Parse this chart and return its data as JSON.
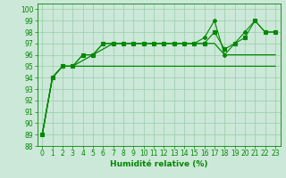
{
  "title": "",
  "xlabel": "Humidité relative (%)",
  "ylabel": "",
  "bg_color": "#cce8d8",
  "grid_color": "#99ccaa",
  "line_color": "#008800",
  "xlim": [
    -0.5,
    23.5
  ],
  "ylim": [
    88,
    100.5
  ],
  "yticks": [
    88,
    89,
    90,
    91,
    92,
    93,
    94,
    95,
    96,
    97,
    98,
    99,
    100
  ],
  "xticks": [
    0,
    1,
    2,
    3,
    4,
    5,
    6,
    7,
    8,
    9,
    10,
    11,
    12,
    13,
    14,
    15,
    16,
    17,
    18,
    19,
    20,
    21,
    22,
    23
  ],
  "series": [
    {
      "x": [
        0,
        1,
        2,
        3,
        4,
        5,
        6,
        7,
        8,
        9,
        10,
        11,
        12,
        13,
        14,
        15,
        16,
        17,
        18,
        19,
        20,
        21,
        22,
        23
      ],
      "y": [
        89,
        94,
        95,
        95,
        95,
        95,
        95,
        95,
        95,
        95,
        95,
        95,
        95,
        95,
        95,
        95,
        95,
        95,
        95,
        95,
        95,
        95,
        95,
        95
      ],
      "linestyle": "-",
      "marker": null,
      "lw": 0.9
    },
    {
      "x": [
        0,
        1,
        2,
        3,
        4,
        5,
        6,
        7,
        8,
        9,
        10,
        11,
        12,
        13,
        14,
        15,
        16,
        17,
        18,
        19,
        20,
        21,
        22,
        23
      ],
      "y": [
        89,
        94,
        95,
        95,
        95.5,
        96,
        96.5,
        97,
        97,
        97,
        97,
        97,
        97,
        97,
        97,
        97,
        97,
        97,
        96,
        96,
        96,
        96,
        96,
        96
      ],
      "linestyle": "-",
      "marker": null,
      "lw": 0.9
    },
    {
      "x": [
        0,
        1,
        2,
        3,
        4,
        5,
        6,
        7,
        8,
        9,
        10,
        11,
        12,
        13,
        14,
        15,
        16,
        17,
        18,
        19,
        20,
        21,
        22,
        23
      ],
      "y": [
        89,
        94,
        95,
        95,
        96,
        96,
        97,
        97,
        97,
        97,
        97,
        97,
        97,
        97,
        97,
        97,
        97,
        98,
        96.5,
        97,
        97.5,
        99,
        98,
        98
      ],
      "linestyle": "-",
      "marker": "s",
      "markersize": 2.2,
      "lw": 0.8
    },
    {
      "x": [
        0,
        1,
        2,
        3,
        4,
        5,
        6,
        7,
        8,
        9,
        10,
        11,
        12,
        13,
        14,
        15,
        16,
        17,
        18,
        19,
        20,
        21,
        22,
        23
      ],
      "y": [
        89,
        94,
        95,
        95,
        96,
        96,
        97,
        97,
        97,
        97,
        97,
        97,
        97,
        97,
        97,
        97,
        97.5,
        99,
        96,
        97,
        98,
        99,
        98,
        98
      ],
      "linestyle": "-",
      "marker": "P",
      "markersize": 2.8,
      "lw": 0.8
    }
  ]
}
